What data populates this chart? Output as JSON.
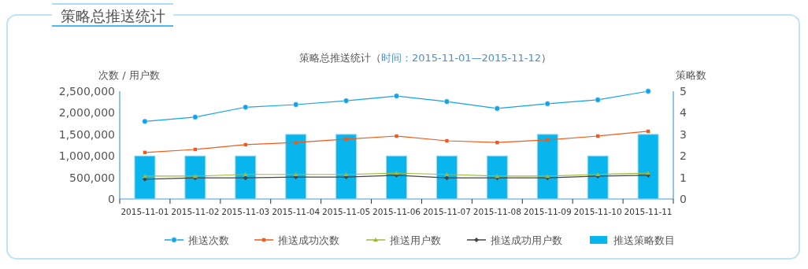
{
  "chart_data": {
    "type": "bar",
    "title": "策略总推送统计（",
    "subtitle": "时间：2015-11-01—2015-11-12",
    "annotations": [
      "策略总推送统计",
      "）"
    ],
    "ylabel": "次数 / 用户数",
    "y2label": "策略数",
    "categories": [
      "2015-11-01",
      "2015-11-02",
      "2015-11-03",
      "2015-11-04",
      "2015-11-05",
      "2015-11-06",
      "2015-11-07",
      "2015-11-08",
      "2015-11-09",
      "2015-11-10",
      "2015-11-11"
    ],
    "series": [
      {
        "name": "推送次数",
        "type": "line",
        "marker": "circle",
        "color": "#13a3e6",
        "values": [
          1800000,
          1900000,
          2130000,
          2190000,
          2280000,
          2390000,
          2260000,
          2100000,
          2210000,
          2300000,
          2500000
        ]
      },
      {
        "name": "推送成功次数",
        "type": "line",
        "marker": "square",
        "color": "#f05a1a",
        "values": [
          1080000,
          1150000,
          1260000,
          1310000,
          1390000,
          1460000,
          1350000,
          1310000,
          1370000,
          1460000,
          1570000
        ]
      },
      {
        "name": "推送用户数",
        "type": "line",
        "marker": "triangle",
        "color": "#9cba3c",
        "values": [
          530000,
          530000,
          570000,
          570000,
          570000,
          600000,
          570000,
          530000,
          530000,
          570000,
          600000
        ]
      },
      {
        "name": "推送成功用户数",
        "type": "line",
        "marker": "diamond",
        "color": "#444444",
        "values": [
          460000,
          490000,
          490000,
          510000,
          510000,
          550000,
          490000,
          490000,
          490000,
          530000,
          550000
        ]
      },
      {
        "name": "推送策略数目",
        "axis": "y2",
        "color": "#08b5ec",
        "values": [
          2,
          2,
          2,
          3,
          3,
          2,
          2,
          2,
          3,
          2,
          3
        ]
      }
    ],
    "ylim": [
      0,
      2500000
    ],
    "yticks": [
      0,
      {
        "value": 500000,
        "label": "500,000"
      },
      {
        "value": 1000000,
        "label": "1,000,000"
      },
      {
        "value": 1500000,
        "label": "1,500,000"
      },
      {
        "value": 2000000,
        "label": "2,000,000"
      },
      {
        "value": 2500000,
        "label": "2,500,000"
      }
    ],
    "y2lim": [
      0,
      5
    ],
    "y2ticks": [
      0,
      1,
      2,
      3,
      4,
      5
    ],
    "grid": false,
    "legend": "bottom"
  }
}
